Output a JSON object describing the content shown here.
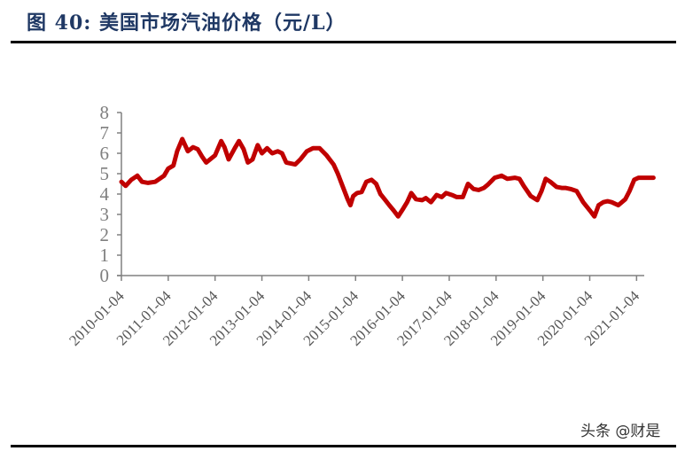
{
  "header": {
    "title": "图 40:  美国市场汽油价格（元/L）"
  },
  "watermark": "头条 @财是",
  "colors": {
    "title": "#1f3864",
    "series": "#c00000",
    "axis": "#808080",
    "tick_label": "#7f7f7f"
  },
  "chart_data": {
    "type": "line",
    "title": "美国市场汽油价格（元/L）",
    "xlabel": "",
    "ylabel": "",
    "ylim": [
      0,
      8
    ],
    "yticks": [
      0,
      1,
      2,
      3,
      4,
      5,
      6,
      7,
      8
    ],
    "xtick_labels": [
      "2010-01-04",
      "2011-01-04",
      "2012-01-04",
      "2013-01-04",
      "2014-01-04",
      "2015-01-04",
      "2016-01-04",
      "2017-01-04",
      "2018-01-04",
      "2019-01-04",
      "2020-01-04",
      "2021-01-04"
    ],
    "xlim": [
      "2010-01-04",
      "2021-05"
    ],
    "grid": false,
    "legend": null,
    "series": [
      {
        "name": "美国市场汽油价格",
        "color": "#c00000",
        "x": [
          2010.0,
          2010.09,
          2010.21,
          2010.34,
          2010.44,
          2010.57,
          2010.72,
          2010.91,
          2011.0,
          2011.11,
          2011.19,
          2011.3,
          2011.42,
          2011.53,
          2011.63,
          2011.72,
          2011.81,
          2012.0,
          2012.13,
          2012.2,
          2012.29,
          2012.42,
          2012.51,
          2012.61,
          2012.7,
          2012.8,
          2012.91,
          2013.0,
          2013.11,
          2013.22,
          2013.34,
          2013.43,
          2013.52,
          2013.71,
          2013.82,
          2013.96,
          2014.09,
          2014.23,
          2014.38,
          2014.53,
          2014.62,
          2014.72,
          2014.83,
          2014.89,
          2014.95,
          2015.03,
          2015.13,
          2015.23,
          2015.34,
          2015.44,
          2015.53,
          2015.62,
          2015.72,
          2015.81,
          2015.91,
          2016.02,
          2016.1,
          2016.19,
          2016.29,
          2016.42,
          2016.5,
          2016.61,
          2016.73,
          2016.84,
          2016.93,
          2017.06,
          2017.16,
          2017.29,
          2017.4,
          2017.52,
          2017.63,
          2017.74,
          2017.82,
          2017.97,
          2018.12,
          2018.24,
          2018.4,
          2018.5,
          2018.59,
          2018.74,
          2018.88,
          2018.97,
          2019.06,
          2019.16,
          2019.29,
          2019.4,
          2019.48,
          2019.59,
          2019.72,
          2019.86,
          2020.0,
          2020.1,
          2020.19,
          2020.29,
          2020.38,
          2020.47,
          2020.61,
          2020.76,
          2020.85,
          2020.95,
          2021.04,
          2021.1,
          2021.17,
          2021.26,
          2021.36
        ],
        "values": [
          4.6,
          4.4,
          4.7,
          4.9,
          4.6,
          4.55,
          4.6,
          4.9,
          5.25,
          5.4,
          6.1,
          6.7,
          6.1,
          6.3,
          6.2,
          5.85,
          5.55,
          5.9,
          6.6,
          6.3,
          5.7,
          6.25,
          6.6,
          6.2,
          5.55,
          5.7,
          6.4,
          6.0,
          6.25,
          6.0,
          6.1,
          6.0,
          5.55,
          5.45,
          5.7,
          6.1,
          6.25,
          6.25,
          5.9,
          5.45,
          5.0,
          4.4,
          3.75,
          3.45,
          3.9,
          4.05,
          4.1,
          4.6,
          4.7,
          4.5,
          4.0,
          3.75,
          3.45,
          3.2,
          2.9,
          3.3,
          3.6,
          4.05,
          3.75,
          3.7,
          3.8,
          3.6,
          3.95,
          3.85,
          4.05,
          3.95,
          3.85,
          3.85,
          4.5,
          4.25,
          4.2,
          4.3,
          4.45,
          4.8,
          4.9,
          4.75,
          4.8,
          4.75,
          4.4,
          3.9,
          3.7,
          4.15,
          4.75,
          4.6,
          4.35,
          4.3,
          4.3,
          4.25,
          4.15,
          3.6,
          3.2,
          2.9,
          3.45,
          3.6,
          3.65,
          3.6,
          3.45,
          3.75,
          4.15,
          4.7,
          4.8,
          4.8,
          4.8,
          4.8,
          4.8
        ]
      }
    ]
  }
}
